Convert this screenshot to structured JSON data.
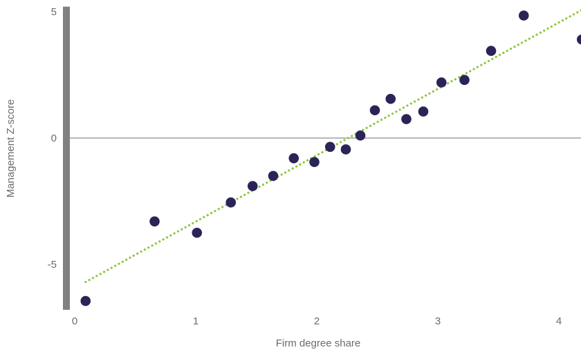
{
  "chart_data": {
    "type": "scatter",
    "title": "",
    "xlabel": "Firm degree share",
    "ylabel": "Management Z-score",
    "xlim": [
      -0.05,
      4.2
    ],
    "ylim": [
      -6.8,
      5.2
    ],
    "x_ticks": [
      0,
      1,
      2,
      3,
      4
    ],
    "y_ticks": [
      5,
      0,
      -5
    ],
    "grid": false,
    "legend": "none",
    "colors": {
      "points": "#2a2457",
      "trendline": "#8dc63f",
      "y_axis_bar": "#808080",
      "zero_line": "#8c8c8c",
      "text": "#6b6b6b"
    },
    "trendline": {
      "style": "dotted",
      "x": [
        0.09,
        4.2
      ],
      "y": [
        -5.7,
        5.1
      ]
    },
    "series": [
      {
        "x": [
          0.09,
          0.66,
          1.01,
          1.29,
          1.47,
          1.64,
          1.81,
          1.98,
          2.11,
          2.24,
          2.36,
          2.48,
          2.61,
          2.74,
          2.88,
          3.03,
          3.22,
          3.44,
          3.71,
          4.19
        ],
        "y": [
          -6.45,
          -3.3,
          -3.75,
          -2.55,
          -1.9,
          -1.5,
          -0.8,
          -0.95,
          -0.35,
          -0.45,
          0.1,
          1.1,
          1.55,
          0.75,
          1.05,
          2.2,
          2.3,
          3.45,
          4.85,
          3.9
        ]
      }
    ]
  }
}
